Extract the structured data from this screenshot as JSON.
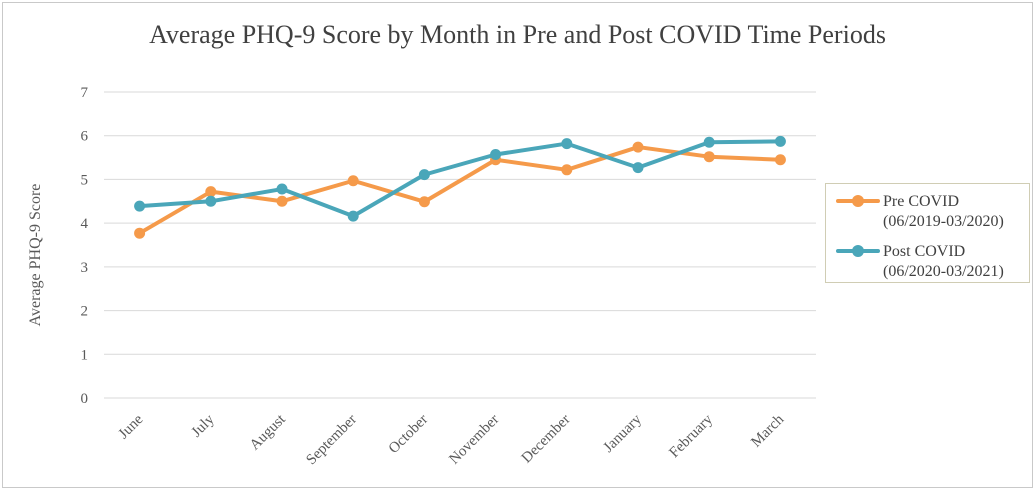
{
  "chart_data": {
    "type": "line",
    "title": "Average PHQ-9 Score by Month in Pre and Post COVID Time Periods",
    "xlabel": "",
    "ylabel": "Average PHQ-9 Score",
    "ylim": [
      0,
      7
    ],
    "yticks": [
      "0",
      "1",
      "2",
      "3",
      "4",
      "5",
      "6",
      "7"
    ],
    "grid": true,
    "legend_position": "right",
    "categories": [
      "June",
      "July",
      "August",
      "September",
      "October",
      "November",
      "December",
      "January",
      "February",
      "March"
    ],
    "series": [
      {
        "name": "Pre COVID",
        "period": "(06/2019-03/2020)",
        "color": "#F59A4A",
        "values": [
          3.77,
          4.72,
          4.5,
          4.97,
          4.49,
          5.45,
          5.22,
          5.74,
          5.52,
          5.45
        ]
      },
      {
        "name": "Post COVID",
        "period": "(06/2020-03/2021)",
        "color": "#4AA6B9",
        "values": [
          4.39,
          4.5,
          4.78,
          4.16,
          5.11,
          5.57,
          5.82,
          5.27,
          5.85,
          5.87
        ]
      }
    ]
  }
}
